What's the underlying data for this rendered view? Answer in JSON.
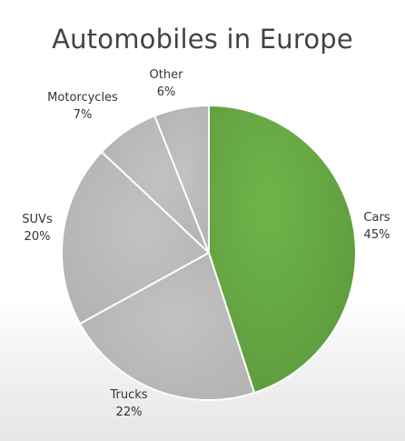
{
  "chart_data": {
    "type": "pie",
    "title": "Automobiles in Europe",
    "slices": [
      {
        "label": "Cars",
        "value": 45,
        "value_label": "45%",
        "color": "#67a844"
      },
      {
        "label": "Trucks",
        "value": 22,
        "value_label": "22%",
        "color": "#bdbdbd"
      },
      {
        "label": "SUVs",
        "value": 20,
        "value_label": "20%",
        "color": "#bdbdbd"
      },
      {
        "label": "Motorcycles",
        "value": 7,
        "value_label": "7%",
        "color": "#bdbdbd"
      },
      {
        "label": "Other",
        "value": 6,
        "value_label": "6%",
        "color": "#bdbdbd"
      }
    ],
    "start_angle": "12 o'clock",
    "direction": "clockwise",
    "legend": "none",
    "slice_border_color": "#ffffff"
  }
}
